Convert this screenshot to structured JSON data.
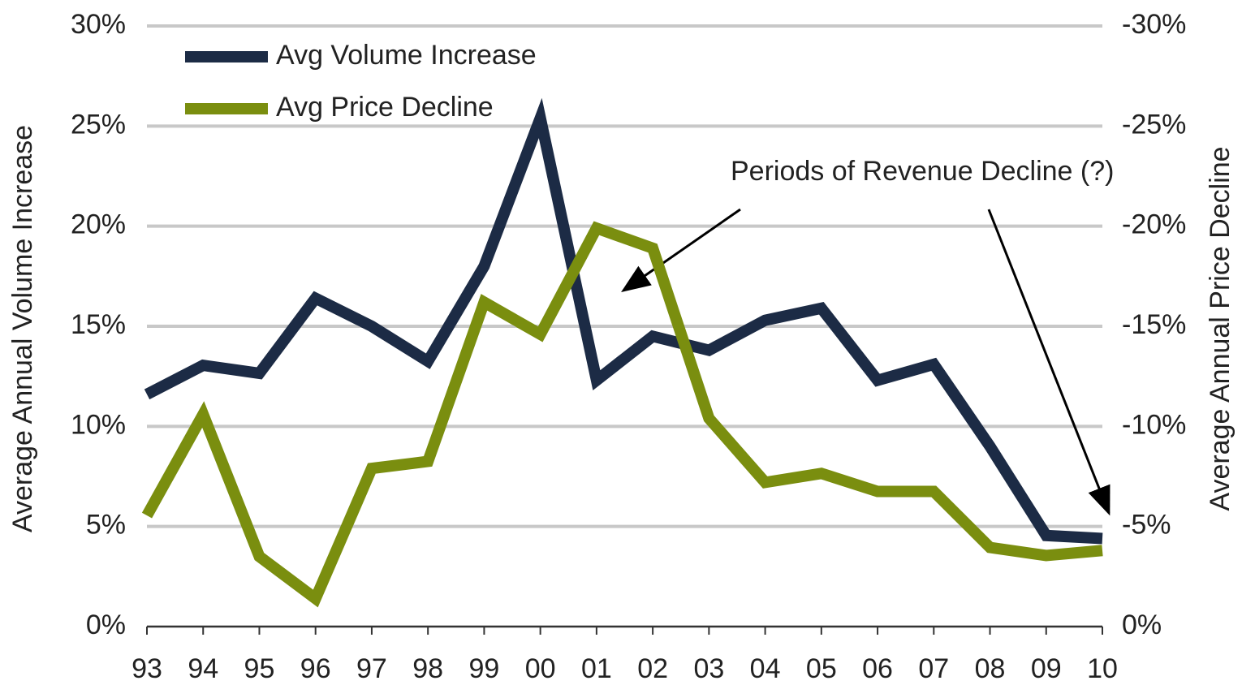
{
  "chart_data": {
    "type": "line",
    "y_axis_label": "Average Annual Volume Increase",
    "y2_axis_label": "Average Annual Price Decline",
    "annotation": "Periods of Revenue Decline (?)",
    "categories": [
      "93",
      "94",
      "95",
      "96",
      "97",
      "98",
      "99",
      "00",
      "01",
      "02",
      "03",
      "04",
      "05",
      "06",
      "07",
      "08",
      "09",
      "10"
    ],
    "series": [
      {
        "name": "Avg Volume Increase",
        "color": "#1c2b45",
        "axis": "y",
        "values": [
          11.6,
          13.05,
          12.65,
          16.4,
          15.0,
          13.25,
          18.0,
          25.4,
          12.3,
          14.5,
          13.8,
          15.3,
          15.9,
          12.3,
          13.1,
          9.0,
          4.55,
          4.4
        ]
      },
      {
        "name": "Avg Price Decline",
        "color": "#7a8e0f",
        "axis": "y2",
        "values": [
          -5.55,
          -10.6,
          -3.5,
          -1.4,
          -7.9,
          -8.25,
          -16.2,
          -14.6,
          -19.9,
          -18.9,
          -10.4,
          -7.2,
          -7.65,
          -6.75,
          -6.75,
          -3.95,
          -3.55,
          -3.8
        ]
      }
    ],
    "ylim": [
      0,
      30
    ],
    "yticks": [
      {
        "value": 0,
        "label": "0%"
      },
      {
        "value": 5,
        "label": "5%"
      },
      {
        "value": 10,
        "label": "10%"
      },
      {
        "value": 15,
        "label": "15%"
      },
      {
        "value": 20,
        "label": "20%"
      },
      {
        "value": 25,
        "label": "25%"
      },
      {
        "value": 30,
        "label": "30%"
      }
    ],
    "y2lim": [
      0,
      -30
    ],
    "y2ticks": [
      {
        "value": 0,
        "label": "0%"
      },
      {
        "value": -5,
        "label": "-5%"
      },
      {
        "value": -10,
        "label": "-10%"
      },
      {
        "value": -15,
        "label": "-15%"
      },
      {
        "value": -20,
        "label": "-20%"
      },
      {
        "value": -25,
        "label": "-25%"
      },
      {
        "value": -30,
        "label": "-30%"
      }
    ],
    "grid": true,
    "legend": "top-left"
  }
}
